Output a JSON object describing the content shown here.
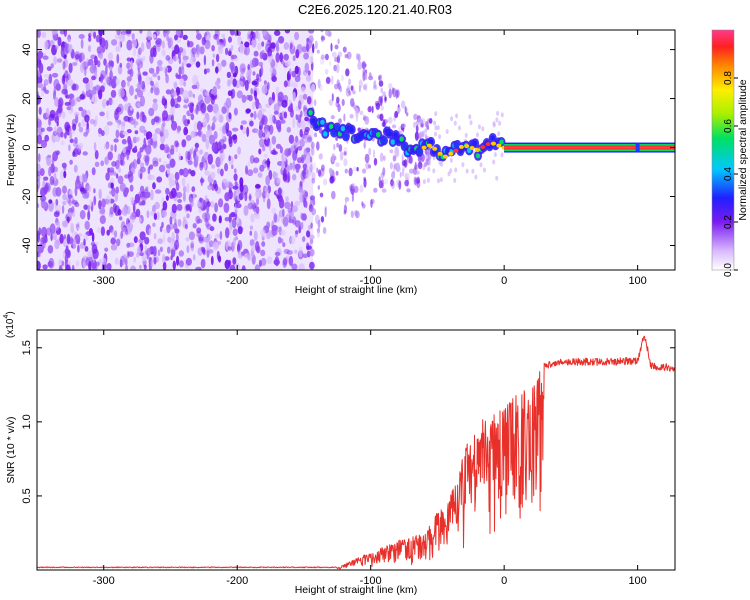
{
  "title": "C2E6.2025.120.21.40.R03",
  "colors": {
    "snr_line": "#e8302a",
    "frame": "#000000",
    "cmap_low": "#7a1cf0"
  },
  "chart_data": [
    {
      "type": "heatmap",
      "xlabel": "Height of straight line (km)",
      "ylabel": "Frequency (Hz)",
      "xlim": [
        -350,
        128
      ],
      "ylim": [
        -50,
        48
      ],
      "xticks": [
        -300,
        -200,
        -100,
        0,
        100
      ],
      "yticks": [
        -40,
        -20,
        0,
        20,
        40
      ],
      "colorbar": {
        "label": "Normalized spectral amplitude",
        "range": [
          0,
          1
        ],
        "ticks": [
          0.0,
          0.2,
          0.4,
          0.6,
          0.8
        ],
        "colormap": "rainbow"
      },
      "ridge": [
        {
          "x": -145,
          "y": 14
        },
        {
          "x": -140,
          "y": 10
        },
        {
          "x": -135,
          "y": 8
        },
        {
          "x": -130,
          "y": 7
        },
        {
          "x": -120,
          "y": 6
        },
        {
          "x": -110,
          "y": 5
        },
        {
          "x": -100,
          "y": 4
        },
        {
          "x": -90,
          "y": 5
        },
        {
          "x": -80,
          "y": 3
        },
        {
          "x": -70,
          "y": -3
        },
        {
          "x": -65,
          "y": -1
        },
        {
          "x": -55,
          "y": 1
        },
        {
          "x": -45,
          "y": -4
        },
        {
          "x": -38,
          "y": -2
        },
        {
          "x": -30,
          "y": 1
        },
        {
          "x": -20,
          "y": -1
        },
        {
          "x": -10,
          "y": 2
        },
        {
          "x": 0,
          "y": 0
        },
        {
          "x": 128,
          "y": 0
        }
      ],
      "noise_region_x": [
        -350,
        -143
      ],
      "constant_line_y": 0,
      "constant_line_from_x": 0
    },
    {
      "type": "line",
      "xlabel": "Height of straight line (km)",
      "ylabel": "SNR (10 * v/v)",
      "scale_label": "(x10",
      "scale_exp": "4",
      "scale_close": ")",
      "xlim": [
        -350,
        128
      ],
      "ylim": [
        0.0,
        1.62
      ],
      "xticks": [
        -300,
        -200,
        -100,
        0,
        100
      ],
      "yticks": [
        0.5,
        1.0,
        1.5
      ],
      "tick_labels_y": [
        "0.5",
        "1.0",
        "1.5"
      ],
      "series": [
        {
          "color": "#e8302a",
          "envelope": [
            {
              "x": -350,
              "y": 0.015
            },
            {
              "x": -125,
              "y": 0.015
            },
            {
              "x": -115,
              "y": 0.06
            },
            {
              "x": -100,
              "y": 0.12
            },
            {
              "x": -80,
              "y": 0.2
            },
            {
              "x": -60,
              "y": 0.25
            },
            {
              "x": -50,
              "y": 0.4
            },
            {
              "x": -42,
              "y": 0.45
            },
            {
              "x": -35,
              "y": 0.65
            },
            {
              "x": -28,
              "y": 0.85
            },
            {
              "x": -20,
              "y": 1.0
            },
            {
              "x": -10,
              "y": 1.05
            },
            {
              "x": 0,
              "y": 1.1
            },
            {
              "x": 10,
              "y": 1.2
            },
            {
              "x": 20,
              "y": 1.3
            },
            {
              "x": 30,
              "y": 1.38
            },
            {
              "x": 40,
              "y": 1.41
            },
            {
              "x": 60,
              "y": 1.41
            },
            {
              "x": 80,
              "y": 1.41
            },
            {
              "x": 100,
              "y": 1.42
            },
            {
              "x": 105,
              "y": 1.6
            },
            {
              "x": 110,
              "y": 1.38
            },
            {
              "x": 128,
              "y": 1.37
            }
          ]
        }
      ]
    }
  ]
}
